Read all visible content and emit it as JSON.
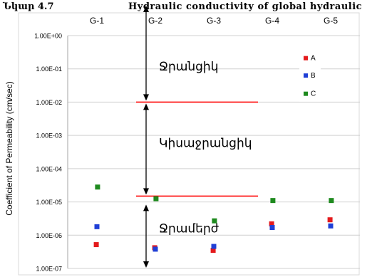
{
  "caption": {
    "prefix": "Նկար 4.7",
    "text": "Hydraulic conductivity of global hydraulic"
  },
  "chart_data": {
    "type": "scatter",
    "categories": [
      "G-1",
      "G-2",
      "G-3",
      "G-4",
      "G-5"
    ],
    "ylabel": "Coefficient of Permeability (cm/sec)",
    "yscale": "log",
    "ylim": [
      1e-07,
      1
    ],
    "yticks": [
      {
        "value": 1,
        "label": "1.00E+00"
      },
      {
        "value": 0.1,
        "label": "1.00E-01"
      },
      {
        "value": 0.01,
        "label": "1.00E-02"
      },
      {
        "value": 0.001,
        "label": "1.00E-03"
      },
      {
        "value": 0.0001,
        "label": "1.00E-04"
      },
      {
        "value": 1e-05,
        "label": "1.00E-05"
      },
      {
        "value": 1e-06,
        "label": "1.00E-06"
      },
      {
        "value": 1e-07,
        "label": "1.00E-07"
      }
    ],
    "grid": true,
    "legend": "top-right",
    "series": [
      {
        "name": "A",
        "color": "#e41a1c",
        "values": [
          5.2e-07,
          4.2e-07,
          3.5e-07,
          2.2e-06,
          2.9e-06
        ]
      },
      {
        "name": "B",
        "color": "#1f3fd6",
        "values": [
          1.8e-06,
          3.8e-07,
          4.6e-07,
          1.7e-06,
          1.9e-06
        ]
      },
      {
        "name": "C",
        "color": "#1e8a1e",
        "values": [
          2.8e-05,
          1.25e-05,
          2.7e-06,
          1.1e-05,
          1.1e-05
        ]
      }
    ],
    "thresholds": [
      {
        "value": 0.01,
        "color": "#ff0000"
      },
      {
        "value": 1.5e-05,
        "color": "#ff0000"
      }
    ],
    "zones": [
      {
        "label": "Ջրանցիկ",
        "from": 1,
        "to": 0.01
      },
      {
        "label": "Կիսաջրանցիկ",
        "from": 0.01,
        "to": 1.5e-05
      },
      {
        "label": "Ջրամերժ",
        "from": 1.5e-05,
        "to": 1e-07
      }
    ]
  }
}
